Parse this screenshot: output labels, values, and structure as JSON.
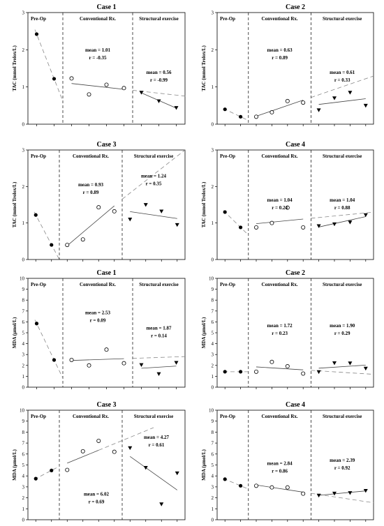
{
  "chart_data": [
    {
      "type": "scatter",
      "title": "Case 1",
      "ylabel": "TAC (mmol Trolox/L)",
      "ylim": [
        0,
        3
      ],
      "yticks": [
        0,
        1,
        2,
        3
      ],
      "phases": [
        "Pre-Op",
        "Conventional Rx.",
        "Structural exercise"
      ],
      "series": [
        {
          "marker": "filled-circle",
          "x": [
            1,
            2
          ],
          "y": [
            2.42,
            1.22
          ]
        },
        {
          "marker": "open-circle",
          "x": [
            3,
            4,
            5,
            6
          ],
          "y": [
            1.23,
            0.8,
            1.06,
            0.97
          ]
        },
        {
          "marker": "filled-triangle-down",
          "x": [
            7,
            8,
            9
          ],
          "y": [
            0.85,
            0.62,
            0.44
          ]
        }
      ],
      "annotations": [
        {
          "mean": "mean = 1.01",
          "r": "r = -0.35",
          "phase": "Conventional Rx."
        },
        {
          "mean": "mean = 0.56",
          "r": "r = -0.99",
          "phase": "Structural exercise"
        }
      ]
    },
    {
      "type": "scatter",
      "title": "Case 2",
      "ylabel": "TAC (mmol Trolox/L)",
      "ylim": [
        0,
        3
      ],
      "yticks": [
        0,
        1,
        2,
        3
      ],
      "phases": [
        "Pre-Op",
        "Conventional Rx.",
        "Structural exercise"
      ],
      "series": [
        {
          "marker": "filled-circle",
          "x": [
            1,
            2
          ],
          "y": [
            0.4,
            0.2
          ]
        },
        {
          "marker": "open-circle",
          "x": [
            3,
            4,
            5,
            6
          ],
          "y": [
            0.2,
            0.32,
            0.62,
            0.58
          ]
        },
        {
          "marker": "filled-triangle-down",
          "x": [
            7,
            8,
            9,
            10
          ],
          "y": [
            0.38,
            0.7,
            0.85,
            0.5
          ]
        }
      ],
      "annotations": [
        {
          "mean": "mean = 0.63",
          "r": "r = 0.89",
          "phase": "Conventional Rx."
        },
        {
          "mean": "mean = 0.61",
          "r": "r = 0.33",
          "phase": "Structural exercise"
        }
      ]
    },
    {
      "type": "scatter",
      "title": "Case 3",
      "ylabel": "TAC (mmol Trolox/L)",
      "ylim": [
        0,
        3
      ],
      "yticks": [
        0,
        1,
        2,
        3
      ],
      "phases": [
        "Pre-Op",
        "Conventional Rx.",
        "Structural exercise"
      ],
      "series": [
        {
          "marker": "filled-circle",
          "x": [
            1,
            2
          ],
          "y": [
            1.22,
            0.4
          ]
        },
        {
          "marker": "open-circle",
          "x": [
            3,
            4,
            5,
            6
          ],
          "y": [
            0.4,
            0.55,
            1.43,
            1.32
          ]
        },
        {
          "marker": "filled-triangle-down",
          "x": [
            7,
            8,
            9,
            10
          ],
          "y": [
            1.1,
            1.5,
            1.32,
            0.95
          ]
        }
      ],
      "annotations": [
        {
          "mean": "mean = 0.93",
          "r": "r = 0.89",
          "phase": "Conventional Rx."
        },
        {
          "mean": "mean = 1.24",
          "r": "r = 0.35",
          "phase": "Structural exercise"
        }
      ]
    },
    {
      "type": "scatter",
      "title": "Case 4",
      "ylabel": "TAC (mmol Trolox/L)",
      "ylim": [
        0,
        3
      ],
      "yticks": [
        0,
        1,
        2,
        3
      ],
      "phases": [
        "Pre-Op",
        "Conventional Rx.",
        "Structural exercise"
      ],
      "series": [
        {
          "marker": "filled-circle",
          "x": [
            1,
            2
          ],
          "y": [
            1.3,
            0.88
          ]
        },
        {
          "marker": "open-circle",
          "x": [
            3,
            4,
            5,
            6
          ],
          "y": [
            0.88,
            1.0,
            1.42,
            0.88
          ]
        },
        {
          "marker": "filled-triangle-down",
          "x": [
            7,
            8,
            9,
            10
          ],
          "y": [
            0.92,
            0.97,
            1.02,
            1.22
          ]
        }
      ],
      "annotations": [
        {
          "mean": "mean = 1.04",
          "r": "r = 0.24",
          "phase": "Conventional Rx."
        },
        {
          "mean": "mean = 1.04",
          "r": "r = 0.88",
          "phase": "Structural exercise"
        }
      ]
    },
    {
      "type": "scatter",
      "title": "Case 1",
      "ylabel": "MDA (µmol/L)",
      "ylim": [
        0,
        10
      ],
      "yticks": [
        0,
        1,
        2,
        3,
        4,
        5,
        6,
        7,
        8,
        9,
        10
      ],
      "phases": [
        "Pre-Op",
        "Conventional Rx.",
        "Structural exercise"
      ],
      "series": [
        {
          "marker": "filled-circle",
          "x": [
            1,
            2
          ],
          "y": [
            5.85,
            2.5
          ]
        },
        {
          "marker": "open-circle",
          "x": [
            3,
            4,
            5,
            6
          ],
          "y": [
            2.5,
            2.0,
            3.45,
            2.2
          ]
        },
        {
          "marker": "filled-triangle-down",
          "x": [
            7,
            8,
            9
          ],
          "y": [
            2.05,
            1.22,
            2.25
          ]
        }
      ],
      "annotations": [
        {
          "mean": "mean = 2.53",
          "r": "r = 0.09",
          "phase": "Conventional Rx."
        },
        {
          "mean": "mean = 1.87",
          "r": "r = 0.14",
          "phase": "Structural exercise"
        }
      ]
    },
    {
      "type": "scatter",
      "title": "Case 2",
      "ylabel": "MDA (µmol/L)",
      "ylim": [
        0,
        10
      ],
      "yticks": [
        0,
        1,
        2,
        3,
        4,
        5,
        6,
        7,
        8,
        9,
        10
      ],
      "phases": [
        "Pre-Op",
        "Conventional Rx.",
        "Structural exercise"
      ],
      "series": [
        {
          "marker": "filled-circle",
          "x": [
            1,
            2
          ],
          "y": [
            1.42,
            1.42
          ]
        },
        {
          "marker": "open-circle",
          "x": [
            3,
            4,
            5,
            6
          ],
          "y": [
            1.42,
            2.32,
            1.92,
            1.25
          ]
        },
        {
          "marker": "filled-triangle-down",
          "x": [
            7,
            8,
            9,
            10
          ],
          "y": [
            1.4,
            2.22,
            2.2,
            1.72
          ]
        }
      ],
      "annotations": [
        {
          "mean": "mean = 1.72",
          "r": "r = 0.23",
          "phase": "Conventional Rx."
        },
        {
          "mean": "mean = 1.90",
          "r": "r = 0.29",
          "phase": "Structural exercise"
        }
      ]
    },
    {
      "type": "scatter",
      "title": "Case 3",
      "ylabel": "MDA (µmol/L)",
      "ylim": [
        0,
        10
      ],
      "yticks": [
        0,
        1,
        2,
        3,
        4,
        5,
        6,
        7,
        8,
        9,
        10
      ],
      "phases": [
        "Pre-Op",
        "Conventional Rx.",
        "Structural exercise"
      ],
      "series": [
        {
          "marker": "filled-circle",
          "x": [
            1,
            2
          ],
          "y": [
            3.75,
            4.5
          ]
        },
        {
          "marker": "open-circle",
          "x": [
            3,
            4,
            5,
            6
          ],
          "y": [
            4.55,
            6.25,
            7.2,
            6.2
          ]
        },
        {
          "marker": "filled-triangle-down",
          "x": [
            7,
            8,
            9,
            10
          ],
          "y": [
            6.55,
            4.75,
            1.42,
            4.25
          ]
        }
      ],
      "annotations": [
        {
          "mean": "mean = 6.02",
          "r": "r = 0.69",
          "phase": "Conventional Rx."
        },
        {
          "mean": "mean = 4.27",
          "r": "r = 0.61",
          "phase": "Structural exercise"
        }
      ]
    },
    {
      "type": "scatter",
      "title": "Case 4",
      "ylabel": "MDA (µmol/L)",
      "ylim": [
        0,
        10
      ],
      "yticks": [
        0,
        1,
        2,
        3,
        4,
        5,
        6,
        7,
        8,
        9,
        10
      ],
      "phases": [
        "Pre-Op",
        "Conventional Rx.",
        "Structural exercise"
      ],
      "series": [
        {
          "marker": "filled-circle",
          "x": [
            1,
            2
          ],
          "y": [
            3.7,
            3.1
          ]
        },
        {
          "marker": "open-circle",
          "x": [
            3,
            4,
            5,
            6
          ],
          "y": [
            3.1,
            2.95,
            2.95,
            2.38
          ]
        },
        {
          "marker": "filled-triangle-down",
          "x": [
            7,
            8,
            9,
            10
          ],
          "y": [
            2.22,
            2.4,
            2.45,
            2.65
          ]
        }
      ],
      "annotations": [
        {
          "mean": "mean = 2.84",
          "r": "r = 0.86",
          "phase": "Conventional Rx."
        },
        {
          "mean": "mean = 2.39",
          "r": "r = 0.92",
          "phase": "Structural exercise"
        }
      ]
    }
  ]
}
